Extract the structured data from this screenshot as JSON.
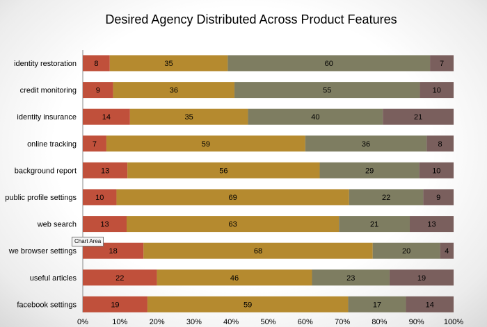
{
  "chart_data": {
    "type": "bar",
    "orientation": "horizontal",
    "stacked": "percent",
    "title": "Desired Agency Distributed Across Product Features",
    "xlabel": "",
    "ylabel": "",
    "xlim": [
      0,
      100
    ],
    "x_ticks": [
      "0%",
      "10%",
      "20%",
      "30%",
      "40%",
      "50%",
      "60%",
      "70%",
      "80%",
      "90%",
      "100%"
    ],
    "grid": false,
    "legend": "none",
    "categories": [
      "identity restoration",
      "credit monitoring",
      "identity insurance",
      "online tracking",
      "background report",
      "public profile settings",
      "web search",
      "we browser settings",
      "useful articles",
      "facebook settings"
    ],
    "series": [
      {
        "color": "#c0503b",
        "values": [
          8,
          9,
          14,
          7,
          13,
          10,
          13,
          18,
          22,
          19
        ]
      },
      {
        "color": "#b58a2f",
        "values": [
          35,
          36,
          35,
          59,
          56,
          69,
          63,
          68,
          46,
          59
        ]
      },
      {
        "color": "#7e7d61",
        "values": [
          60,
          55,
          40,
          36,
          29,
          22,
          21,
          20,
          23,
          17
        ]
      },
      {
        "color": "#7a5f5d",
        "values": [
          7,
          10,
          21,
          8,
          10,
          9,
          13,
          4,
          19,
          14
        ]
      }
    ]
  },
  "tooltip": "Chart Area"
}
